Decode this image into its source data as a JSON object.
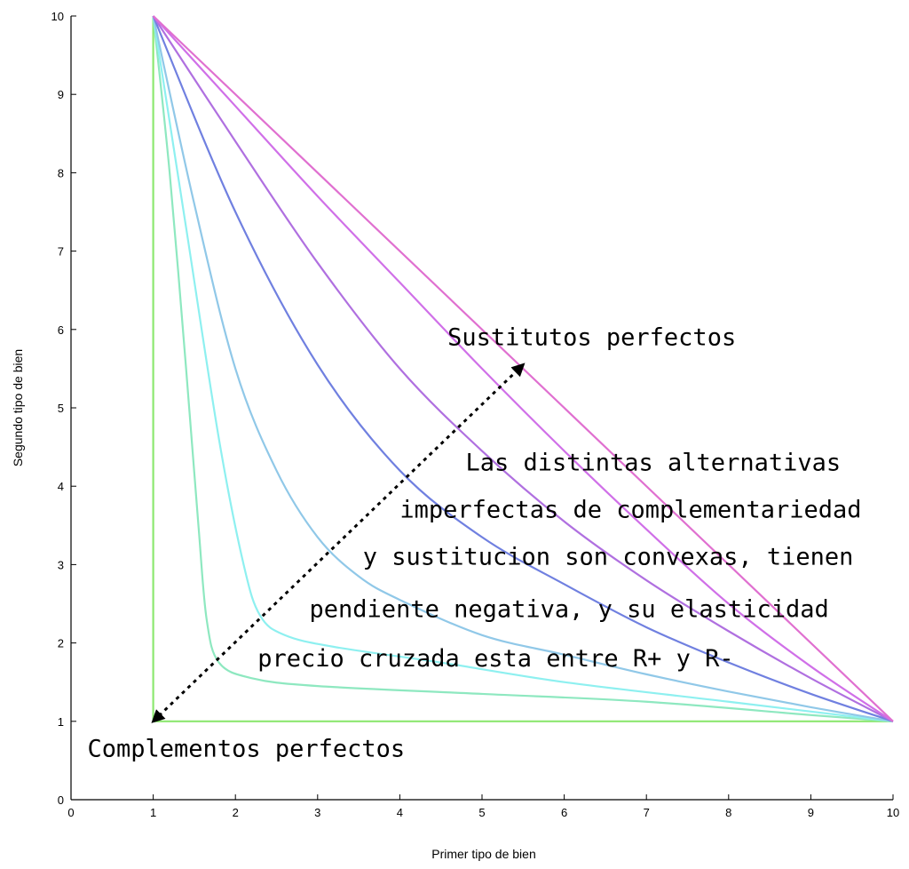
{
  "chart_data": {
    "type": "line",
    "xlabel": "Primer tipo de bien",
    "ylabel": "Segundo tipo de bien",
    "xlim": [
      0,
      10
    ],
    "ylim": [
      0,
      10
    ],
    "xticks": [
      "0",
      "1",
      "2",
      "3",
      "4",
      "5",
      "6",
      "7",
      "8",
      "9",
      "10"
    ],
    "yticks": [
      "0",
      "1",
      "2",
      "3",
      "4",
      "5",
      "6",
      "7",
      "8",
      "9",
      "10"
    ],
    "grid": false,
    "legend": "none",
    "series": [
      {
        "color": "#8de870",
        "x": [
          1,
          1,
          10
        ],
        "y": [
          10,
          1,
          1
        ]
      },
      {
        "color": "#8ee8c0",
        "x": [
          1,
          1.2,
          1.4,
          1.55,
          1.65,
          1.8,
          2.2,
          3,
          5,
          7,
          9,
          10
        ],
        "y": [
          10,
          8,
          5.5,
          3.5,
          2.3,
          1.75,
          1.55,
          1.45,
          1.35,
          1.25,
          1.08,
          1
        ]
      },
      {
        "color": "#8ef0f0",
        "x": [
          1,
          1.4,
          1.8,
          2.1,
          2.3,
          2.6,
          3.2,
          4.5,
          6,
          8,
          10
        ],
        "y": [
          10,
          7.3,
          4.6,
          3.0,
          2.35,
          2.1,
          1.95,
          1.75,
          1.5,
          1.25,
          1
        ]
      },
      {
        "color": "#90c8e8",
        "x": [
          1,
          1.5,
          2,
          2.5,
          3,
          3.5,
          4,
          5,
          6,
          7,
          8,
          9,
          10
        ],
        "y": [
          10,
          7.6,
          5.5,
          4.2,
          3.35,
          2.85,
          2.55,
          2.1,
          1.85,
          1.6,
          1.38,
          1.18,
          1
        ]
      },
      {
        "color": "#7080e0",
        "x": [
          1,
          2,
          3,
          4,
          5,
          6,
          7,
          8,
          9,
          10
        ],
        "y": [
          10,
          7.5,
          5.55,
          4.2,
          3.35,
          2.75,
          2.2,
          1.75,
          1.35,
          1
        ]
      },
      {
        "color": "#b070e0",
        "x": [
          1,
          2,
          3,
          4,
          5,
          6,
          7,
          8,
          9,
          10
        ],
        "y": [
          10,
          8.4,
          6.85,
          5.5,
          4.45,
          3.55,
          2.8,
          2.15,
          1.55,
          1
        ]
      },
      {
        "color": "#d070e8",
        "x": [
          1,
          2,
          3,
          4,
          5,
          6,
          7,
          8,
          9,
          10
        ],
        "y": [
          10,
          8.85,
          7.7,
          6.6,
          5.5,
          4.45,
          3.45,
          2.5,
          1.7,
          1
        ]
      },
      {
        "color": "#e070d0",
        "x": [
          1,
          10
        ],
        "y": [
          10,
          1
        ]
      }
    ],
    "annotations": [
      {
        "text": "Sustitutos perfectos",
        "x": 4.58,
        "y": 5.8
      },
      {
        "text": "Las distintas alternativas",
        "x": 4.8,
        "y": 4.2
      },
      {
        "text": "imperfectas de complementariedad",
        "x": 4.0,
        "y": 3.6
      },
      {
        "text": "y sustitucion son convexas, tienen",
        "x": 3.55,
        "y": 3.0
      },
      {
        "text": "pendiente negativa, y su elasticidad",
        "x": 2.9,
        "y": 2.33
      },
      {
        "text": "precio cruzada esta entre R+ y R-",
        "x": 2.27,
        "y": 1.7
      },
      {
        "text": "Complementos perfectos",
        "x": 0.2,
        "y": 0.55
      }
    ],
    "arrow": {
      "from": [
        1,
        1
      ],
      "to": [
        5.5,
        5.55
      ],
      "style": "dotted",
      "heads": "both"
    }
  }
}
